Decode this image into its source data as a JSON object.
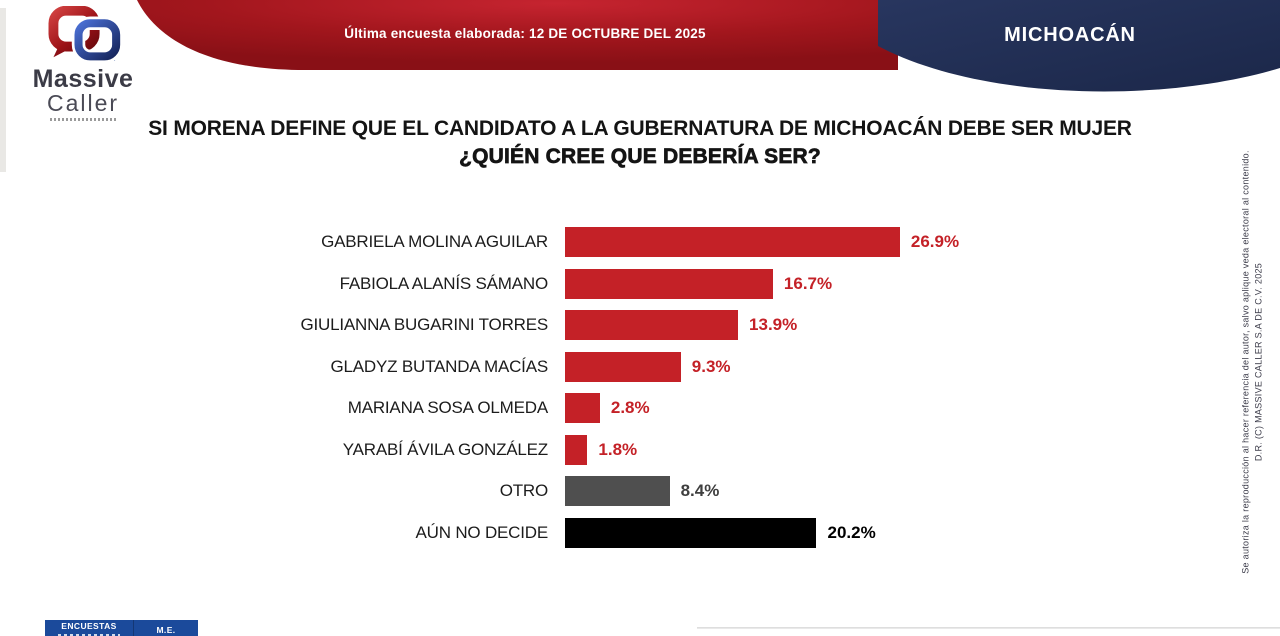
{
  "header": {
    "logo": {
      "line1": "Massive",
      "line2": "Caller"
    },
    "banner_text": "Última encuesta elaborada: 12 DE OCTUBRE DEL 2025",
    "region": "MICHOACÁN"
  },
  "title": {
    "line1": "SI MORENA DEFINE QUE EL CANDIDATO A LA GUBERNATURA DE MICHOACÁN DEBE SER MUJER",
    "line2": "¿QUIÉN CREE QUE DEBERÍA SER?"
  },
  "chart_data": {
    "type": "bar",
    "orientation": "horizontal",
    "title": "SI MORENA DEFINE QUE EL CANDIDATO A LA GUBERNATURA DE MICHOACÁN DEBE SER MUJER ¿QUIÉN CREE QUE DEBERÍA SER?",
    "categories": [
      "GABRIELA MOLINA AGUILAR",
      "FABIOLA ALANÍS SÁMANO",
      "GIULIANNA BUGARINI TORRES",
      "GLADYZ BUTANDA MACÍAS",
      "MARIANA SOSA OLMEDA",
      "YARABÍ ÁVILA GONZÁLEZ",
      "OTRO",
      "AÚN NO DECIDE"
    ],
    "values": [
      26.9,
      16.7,
      13.9,
      9.3,
      2.8,
      1.8,
      8.4,
      20.2
    ],
    "value_suffix": "%",
    "bar_colors": [
      "#c42127",
      "#c42127",
      "#c42127",
      "#c42127",
      "#c42127",
      "#c42127",
      "#4f4f4f",
      "#000000"
    ],
    "value_text_colors": [
      "#c42127",
      "#c42127",
      "#c42127",
      "#c42127",
      "#c42127",
      "#c42127",
      "#3f3f3f",
      "#000000"
    ],
    "xlim": [
      0,
      30
    ],
    "grid": false,
    "legend": "none"
  },
  "side_note": {
    "authorization": "Se autoriza la reproducción al hacer referencia del autor, salvo aplique veda electoral al contenido.",
    "copyright": "D.R. (C) MASSIVE CALLER S.A DE C.V. 2025"
  },
  "footer": {
    "encuestas_label": "ENCUESTAS",
    "me_label": "M.E."
  },
  "colors": {
    "accent_red": "#c42127",
    "banner_red_dark": "#8c1016",
    "navy": "#202d53",
    "bar_gray": "#4f4f4f",
    "bar_black": "#000000",
    "footer_blue": "#1b4a9b"
  }
}
